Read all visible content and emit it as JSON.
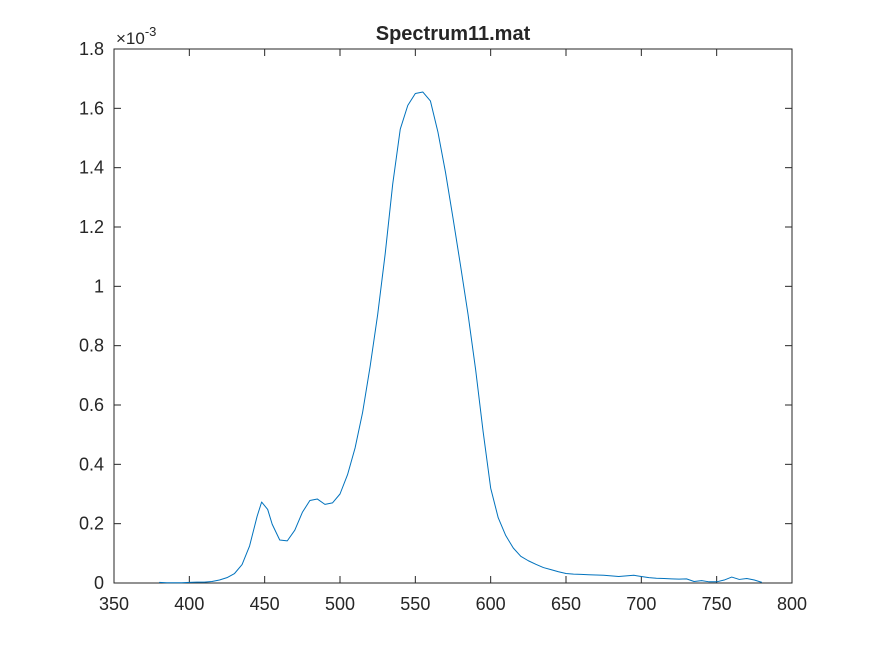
{
  "chart_data": {
    "type": "line",
    "title": "Spectrum11.mat",
    "xlabel": "",
    "ylabel": "",
    "xlim": [
      350,
      800
    ],
    "ylim": [
      0,
      1.8
    ],
    "y_exponent_label": "×10",
    "y_exponent_power": "-3",
    "x_ticks": [
      350,
      400,
      450,
      500,
      550,
      600,
      650,
      700,
      750,
      800
    ],
    "y_ticks": [
      0,
      0.2,
      0.4,
      0.6,
      0.8,
      1,
      1.2,
      1.4,
      1.6,
      1.8
    ],
    "x_tick_labels": [
      "350",
      "400",
      "450",
      "500",
      "550",
      "600",
      "650",
      "700",
      "750",
      "800"
    ],
    "y_tick_labels": [
      "0",
      "0.2",
      "0.4",
      "0.6",
      "0.8",
      "1",
      "1.2",
      "1.4",
      "1.6",
      "1.8"
    ],
    "grid": false,
    "line_color": "#0072BD",
    "series": [
      {
        "x": [
          380,
          385,
          390,
          395,
          400,
          405,
          410,
          415,
          420,
          425,
          430,
          435,
          440,
          445,
          448,
          452,
          455,
          460,
          465,
          470,
          475,
          480,
          485,
          490,
          495,
          500,
          505,
          510,
          515,
          520,
          525,
          530,
          535,
          540,
          545,
          550,
          555,
          560,
          565,
          570,
          575,
          580,
          585,
          590,
          595,
          600,
          605,
          610,
          615,
          620,
          625,
          630,
          635,
          640,
          645,
          650,
          655,
          660,
          665,
          670,
          675,
          680,
          685,
          690,
          695,
          700,
          705,
          710,
          715,
          720,
          725,
          730,
          735,
          740,
          745,
          750,
          755,
          760,
          765,
          770,
          775,
          780
        ],
        "y": [
          0.002,
          0.001,
          0.001,
          0.001,
          0.002,
          0.003,
          0.003,
          0.005,
          0.01,
          0.018,
          0.032,
          0.062,
          0.125,
          0.225,
          0.273,
          0.248,
          0.198,
          0.145,
          0.142,
          0.178,
          0.238,
          0.278,
          0.283,
          0.265,
          0.27,
          0.3,
          0.365,
          0.455,
          0.575,
          0.73,
          0.905,
          1.11,
          1.345,
          1.53,
          1.61,
          1.65,
          1.655,
          1.625,
          1.52,
          1.385,
          1.23,
          1.07,
          0.905,
          0.72,
          0.51,
          0.32,
          0.22,
          0.16,
          0.118,
          0.09,
          0.075,
          0.063,
          0.052,
          0.045,
          0.038,
          0.032,
          0.03,
          0.029,
          0.028,
          0.027,
          0.026,
          0.024,
          0.022,
          0.024,
          0.026,
          0.022,
          0.018,
          0.016,
          0.015,
          0.014,
          0.013,
          0.014,
          0.005,
          0.008,
          0.004,
          0.004,
          0.01,
          0.02,
          0.012,
          0.015,
          0.01,
          0.002
        ]
      }
    ]
  }
}
